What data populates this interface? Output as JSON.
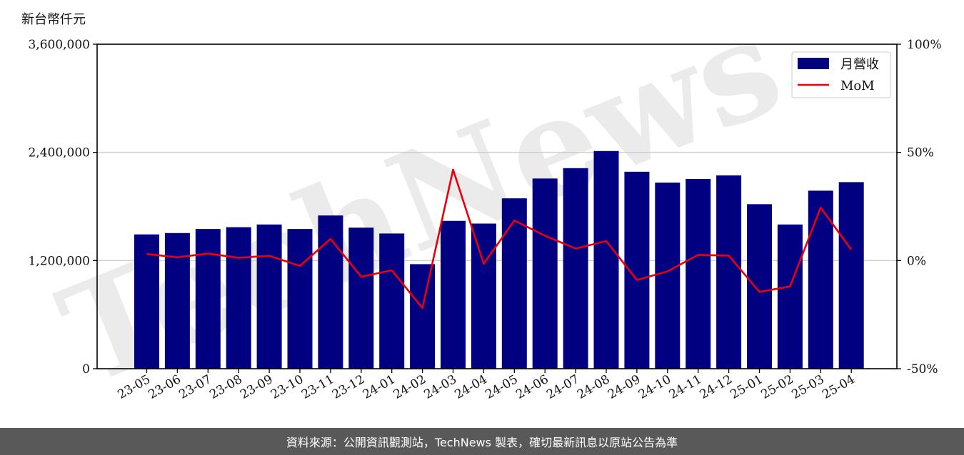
{
  "chart_data": {
    "type": "bar",
    "unit_label": "新台幣仟元",
    "categories": [
      "23-05",
      "23-06",
      "23-07",
      "23-08",
      "23-09",
      "23-10",
      "23-11",
      "23-12",
      "24-01",
      "24-02",
      "24-03",
      "24-04",
      "24-05",
      "24-06",
      "24-07",
      "24-08",
      "24-09",
      "24-10",
      "24-11",
      "24-12",
      "25-01",
      "25-02",
      "25-03",
      "25-04"
    ],
    "series": [
      {
        "name": "月營收",
        "type": "bar",
        "axis": "left",
        "color": "#000080",
        "values": [
          1490000,
          1505000,
          1550000,
          1570000,
          1600000,
          1550000,
          1700000,
          1565000,
          1500000,
          1160000,
          1640000,
          1610000,
          1890000,
          2110000,
          2225000,
          2415000,
          2185000,
          2065000,
          2105000,
          2145000,
          1825000,
          1600000,
          1975000,
          2070000
        ]
      },
      {
        "name": "MoM",
        "type": "line",
        "axis": "right",
        "color": "#e8000b",
        "values": [
          3,
          1.5,
          3.2,
          1.3,
          2.2,
          -2.5,
          10,
          -7.5,
          -4.5,
          -22,
          42,
          -1.5,
          18.5,
          11.5,
          5.5,
          9,
          -9,
          -5,
          2.6,
          2.3,
          -14.5,
          -12,
          24.5,
          5
        ]
      }
    ],
    "y_left": {
      "min": 0,
      "max": 3600000,
      "ticks": [
        "0",
        "1,200,000",
        "2,400,000",
        "3,600,000"
      ],
      "tick_values": [
        0,
        1200000,
        2400000,
        3600000
      ]
    },
    "y_right": {
      "min": -50,
      "max": 100,
      "ticks": [
        "-50%",
        "0%",
        "50%",
        "100%"
      ],
      "tick_values": [
        -50,
        0,
        50,
        100
      ]
    },
    "grid": "horizontal",
    "legend_position": "top-right"
  },
  "watermark_text": "TechNews",
  "footer_text": "資料來源：公開資訊觀測站，TechNews 製表，確切最新訊息以原站公告為準"
}
